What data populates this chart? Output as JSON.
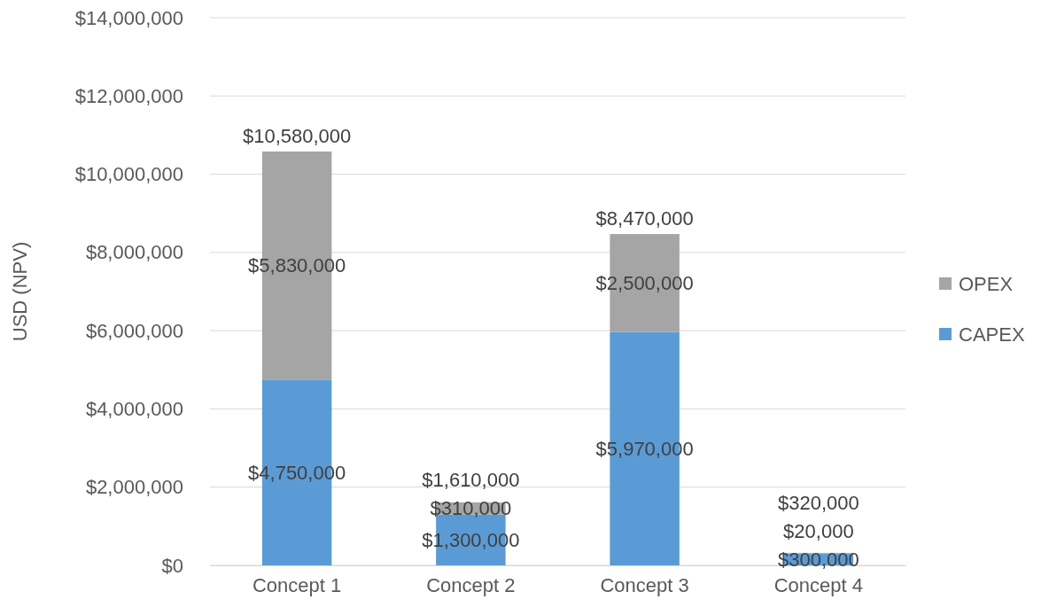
{
  "chart_data": {
    "type": "bar",
    "ylabel": "USD (NPV)",
    "categories": [
      "Concept 1",
      "Concept 2",
      "Concept 3",
      "Concept 4"
    ],
    "stacked": true,
    "series": [
      {
        "name": "CAPEX",
        "color": "#5b9bd5",
        "values": [
          4750000,
          1300000,
          5970000,
          300000
        ],
        "value_labels": [
          "$4,750,000",
          "$1,300,000",
          "$5,970,000",
          "$300,000"
        ]
      },
      {
        "name": "OPEX",
        "color": "#a5a5a5",
        "values": [
          5830000,
          310000,
          2500000,
          20000
        ],
        "value_labels": [
          "$5,830,000",
          "$310,000",
          "$2,500,000",
          "$20,000"
        ]
      }
    ],
    "totals": [
      "$10,580,000",
      "$1,610,000",
      "$8,470,000",
      "$320,000"
    ],
    "ylim": [
      0,
      14000000
    ],
    "yticks": [
      {
        "value": 0,
        "label": "$0"
      },
      {
        "value": 2000000,
        "label": "$2,000,000"
      },
      {
        "value": 4000000,
        "label": "$4,000,000"
      },
      {
        "value": 6000000,
        "label": "$6,000,000"
      },
      {
        "value": 8000000,
        "label": "$8,000,000"
      },
      {
        "value": 10000000,
        "label": "$10,000,000"
      },
      {
        "value": 12000000,
        "label": "$12,000,000"
      },
      {
        "value": 14000000,
        "label": "$14,000,000"
      }
    ],
    "grid": "y",
    "legend": "right"
  }
}
